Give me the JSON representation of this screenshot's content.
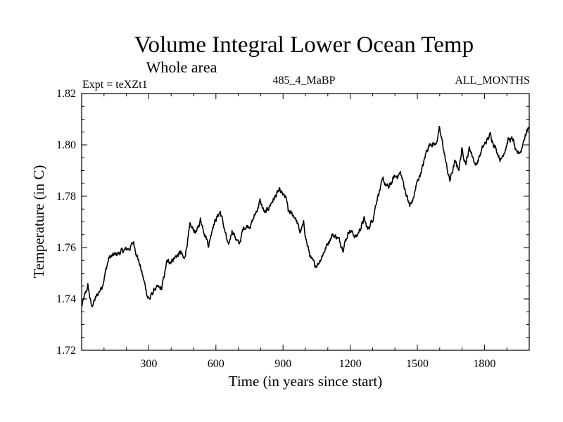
{
  "chart_data": {
    "type": "line",
    "title": "Volume Integral Lower Ocean Temp",
    "subtitle": "Whole area",
    "left_label": "Expt = teXZt1",
    "center_label": "485_4_MaBP",
    "right_label": "ALL_MONTHS",
    "xlabel": "Time (in years since start)",
    "ylabel": "Temperature (in C)",
    "xlim": [
      0,
      2000
    ],
    "ylim": [
      1.72,
      1.82
    ],
    "x_ticks": [
      300,
      600,
      900,
      1200,
      1500,
      1800
    ],
    "x_tick_labels": [
      "300",
      "600",
      "900",
      "1200",
      "1500",
      "1800"
    ],
    "x_minor_step": 100,
    "y_ticks": [
      1.72,
      1.74,
      1.76,
      1.78,
      1.8,
      1.82
    ],
    "y_tick_labels": [
      "1.72",
      "1.74",
      "1.76",
      "1.78",
      "1.80",
      "1.82"
    ],
    "y_minor_step": 0.005,
    "grid": false,
    "line_color": "#000000",
    "series": [
      {
        "name": "Volume Integral Lower Ocean Temp",
        "x": [
          0,
          28,
          44,
          91,
          122,
          170,
          217,
          232,
          264,
          295,
          305,
          327,
          358,
          380,
          399,
          443,
          458,
          484,
          515,
          531,
          568,
          587,
          619,
          631,
          656,
          672,
          703,
          725,
          757,
          776,
          797,
          820,
          851,
          882,
          914,
          923,
          954,
          976,
          992,
          1008,
          1027,
          1042,
          1058,
          1086,
          1118,
          1143,
          1168,
          1196,
          1228,
          1262,
          1278,
          1300,
          1322,
          1347,
          1372,
          1394,
          1425,
          1447,
          1466,
          1482,
          1498,
          1526,
          1542,
          1560,
          1582,
          1598,
          1614,
          1630,
          1645,
          1667,
          1686,
          1699,
          1718,
          1733,
          1762,
          1793,
          1827,
          1849,
          1874,
          1906,
          1928,
          1943,
          1965,
          1975,
          1997
        ],
        "y": [
          1.737,
          1.745,
          1.737,
          1.745,
          1.756,
          1.758,
          1.76,
          1.762,
          1.752,
          1.741,
          1.74,
          1.744,
          1.744,
          1.754,
          1.755,
          1.758,
          1.755,
          1.768,
          1.766,
          1.771,
          1.761,
          1.769,
          1.774,
          1.77,
          1.76,
          1.767,
          1.761,
          1.768,
          1.769,
          1.773,
          1.778,
          1.773,
          1.778,
          1.782,
          1.779,
          1.774,
          1.772,
          1.766,
          1.769,
          1.761,
          1.755,
          1.753,
          1.754,
          1.759,
          1.765,
          1.764,
          1.76,
          1.767,
          1.764,
          1.771,
          1.767,
          1.771,
          1.78,
          1.786,
          1.783,
          1.787,
          1.789,
          1.782,
          1.776,
          1.779,
          1.785,
          1.792,
          1.798,
          1.801,
          1.8,
          1.806,
          1.8,
          1.792,
          1.786,
          1.793,
          1.791,
          1.798,
          1.793,
          1.799,
          1.792,
          1.799,
          1.804,
          1.799,
          1.794,
          1.802,
          1.802,
          1.796,
          1.798,
          1.802,
          1.807
        ]
      }
    ]
  }
}
